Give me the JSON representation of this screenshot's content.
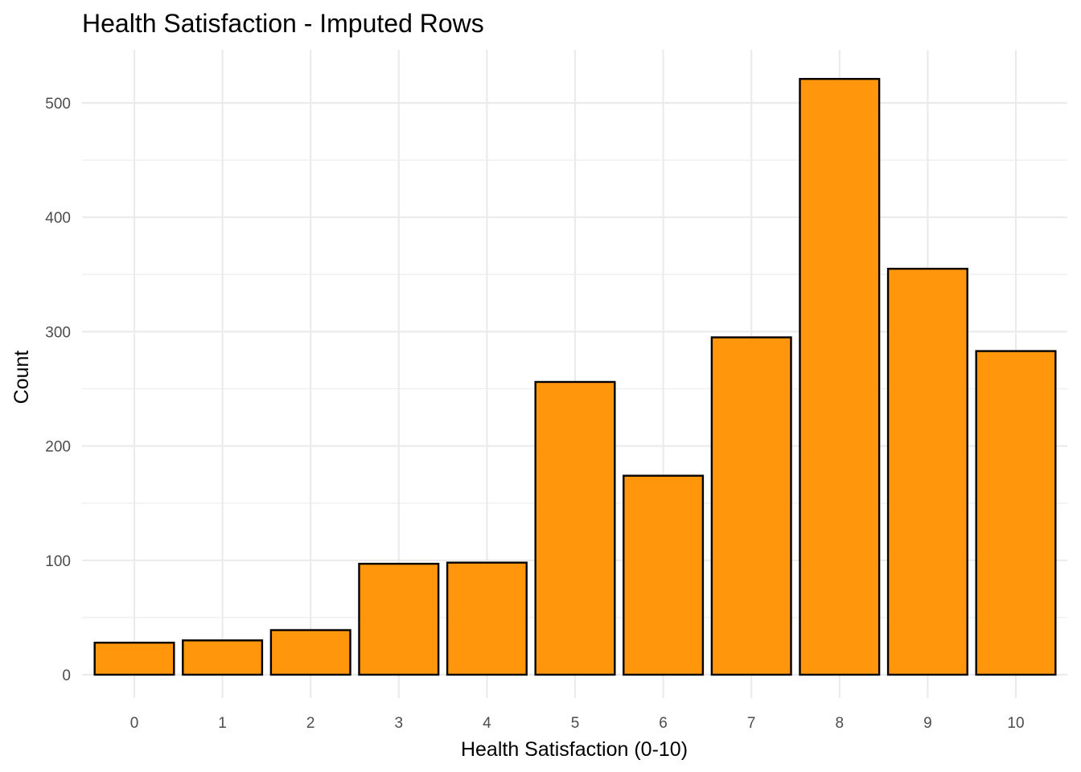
{
  "chart_data": {
    "type": "bar",
    "title": "Health Satisfaction - Imputed Rows",
    "xlabel": "Health Satisfaction (0-10)",
    "ylabel": "Count",
    "categories": [
      "0",
      "1",
      "2",
      "3",
      "4",
      "5",
      "6",
      "7",
      "8",
      "9",
      "10"
    ],
    "values": [
      28,
      30,
      39,
      97,
      98,
      256,
      174,
      295,
      521,
      355,
      283
    ],
    "ylim": [
      -24,
      547
    ],
    "yticks": [
      0,
      100,
      200,
      300,
      400,
      500
    ],
    "yminor": [
      50,
      150,
      250,
      350,
      450
    ],
    "grid": true,
    "legend": "none",
    "colors": {
      "bar_fill": "#FF960B",
      "bar_stroke": "#000000",
      "grid": "#ebebeb"
    }
  }
}
